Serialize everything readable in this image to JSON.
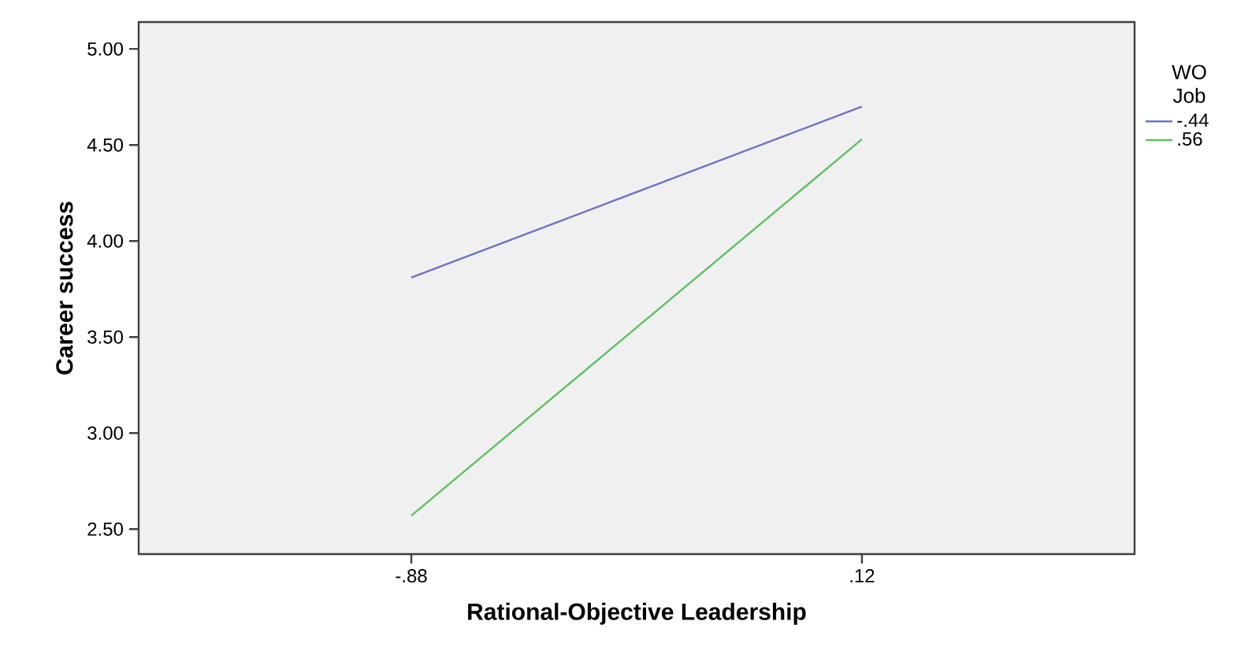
{
  "chart_data": {
    "type": "line",
    "xlabel": "Rational-Objective Leadership",
    "ylabel": "Career success",
    "legend_title": "WO Job",
    "categories": [
      "-.88",
      ".12"
    ],
    "series": [
      {
        "name": "-.44",
        "color": "#6a73c9",
        "values": [
          3.81,
          4.7
        ]
      },
      {
        "name": ".56",
        "color": "#5cc15e",
        "values": [
          2.57,
          4.53
        ]
      }
    ],
    "ylim": [
      2.37,
      5.14
    ],
    "yticks": [
      {
        "value": 2.5,
        "label": "2.50"
      },
      {
        "value": 3.0,
        "label": "3.00"
      },
      {
        "value": 3.5,
        "label": "3.50"
      },
      {
        "value": 4.0,
        "label": "4.00"
      },
      {
        "value": 4.5,
        "label": "4.50"
      },
      {
        "value": 5.0,
        "label": "5.00"
      }
    ],
    "grid": false,
    "legend": "right",
    "marker": "none",
    "line_style": "solid"
  }
}
